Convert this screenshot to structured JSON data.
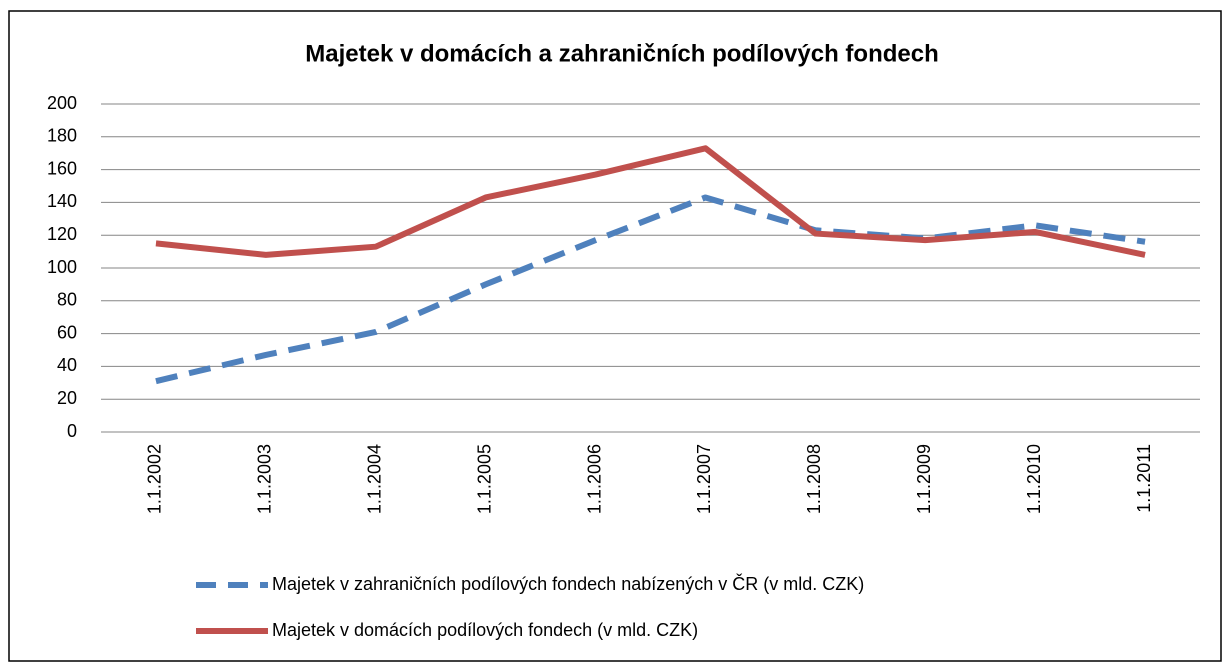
{
  "chart_data": {
    "type": "line",
    "title": "Majetek v domácích a zahraničních podílových fondech",
    "categories": [
      "1.1.2002",
      "1.1.2003",
      "1.1.2004",
      "1.1.2005",
      "1.1.2006",
      "1.1.2007",
      "1.1.2008",
      "1.1.2009",
      "1.1.2010",
      "1.1.2011"
    ],
    "series": [
      {
        "name": "Majetek v zahraničních podílových fondech nabízených v ČR (v mld. CZK)",
        "color": "#4f81bd",
        "style": "dashed",
        "values": [
          31,
          47,
          61,
          90,
          117,
          143,
          123,
          118,
          126,
          116
        ]
      },
      {
        "name": "Majetek v domácích podílových fondech (v mld. CZK)",
        "color": "#c0504d",
        "style": "solid",
        "values": [
          115,
          108,
          113,
          143,
          157,
          173,
          121,
          117,
          122,
          108
        ]
      }
    ],
    "ylim": [
      0,
      200
    ],
    "yticks": [
      0,
      20,
      40,
      60,
      80,
      100,
      120,
      140,
      160,
      180,
      200
    ],
    "grid": true,
    "legend": "bottom"
  }
}
